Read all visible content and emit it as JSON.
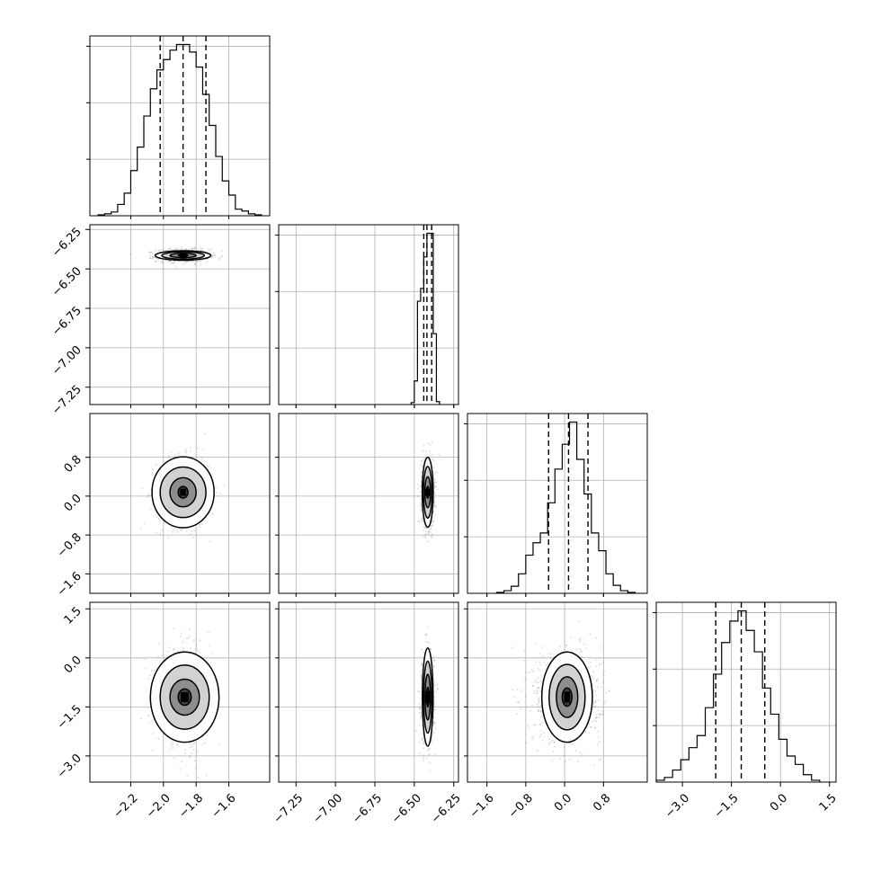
{
  "chart_data": {
    "type": "corner",
    "title": "",
    "grid": true,
    "colors": {
      "line": "#000000",
      "grid": "#b0b0b0",
      "sample": "#555555"
    },
    "parameters": [
      {
        "label": "",
        "range": [
          -2.45,
          -1.35
        ],
        "ticks": [
          -2.2,
          -2.0,
          -1.8,
          -1.6
        ],
        "tick_labels": [
          "−2.2",
          "−2.0",
          "−1.8",
          "−1.6"
        ],
        "quantiles": [
          -2.02,
          -1.88,
          -1.74
        ],
        "mean": -1.88,
        "sd": 0.08
      },
      {
        "label": "",
        "range": [
          -7.36,
          -6.22
        ],
        "ticks": [
          -7.25,
          -7.0,
          -6.75,
          -6.5,
          -6.25
        ],
        "tick_labels": [
          "−7.25",
          "−7.00",
          "−6.75",
          "−6.50",
          "−6.25"
        ],
        "quantiles": [
          -6.44,
          -6.42,
          -6.39
        ],
        "mean": -6.415,
        "sd": 0.02
      },
      {
        "label": "",
        "range": [
          -2.0,
          1.7
        ],
        "ticks": [
          -1.6,
          -0.8,
          0.0,
          0.8
        ],
        "tick_labels": [
          "−1.6",
          "−0.8",
          "0.0",
          "0.8"
        ],
        "quantiles": [
          -0.33,
          0.08,
          0.48
        ],
        "mean": 0.08,
        "sd": 0.35
      },
      {
        "label": "",
        "range": [
          -3.8,
          1.7
        ],
        "ticks": [
          -3.0,
          -1.5,
          0.0,
          1.5
        ],
        "tick_labels": [
          "−3.0",
          "−1.5",
          "0.0",
          "1.5"
        ],
        "quantiles": [
          -1.98,
          -1.2,
          -0.48
        ],
        "mean": -1.2,
        "sd": 0.7
      }
    ],
    "hist": [
      {
        "param": 0,
        "bins": [
          [
            -2.4,
            -2.36,
            1
          ],
          [
            -2.36,
            -2.32,
            2
          ],
          [
            -2.32,
            -2.28,
            4
          ],
          [
            -2.28,
            -2.24,
            12
          ],
          [
            -2.24,
            -2.2,
            24
          ],
          [
            -2.2,
            -2.16,
            48
          ],
          [
            -2.16,
            -2.12,
            73
          ],
          [
            -2.12,
            -2.08,
            106
          ],
          [
            -2.08,
            -2.04,
            135
          ],
          [
            -2.04,
            -2.0,
            155
          ],
          [
            -2.0,
            -1.96,
            166
          ],
          [
            -1.96,
            -1.92,
            176
          ],
          [
            -1.92,
            -1.88,
            182
          ],
          [
            -1.88,
            -1.84,
            182
          ],
          [
            -1.84,
            -1.8,
            174
          ],
          [
            -1.8,
            -1.76,
            158
          ],
          [
            -1.76,
            -1.72,
            129
          ],
          [
            -1.72,
            -1.68,
            96
          ],
          [
            -1.68,
            -1.64,
            63
          ],
          [
            -1.64,
            -1.6,
            37
          ],
          [
            -1.6,
            -1.56,
            22
          ],
          [
            -1.56,
            -1.52,
            7
          ],
          [
            -1.52,
            -1.48,
            5
          ],
          [
            -1.48,
            -1.44,
            2
          ],
          [
            -1.44,
            -1.4,
            1
          ]
        ]
      },
      {
        "param": 1,
        "bins": [
          [
            -6.52,
            -6.5,
            2
          ],
          [
            -6.5,
            -6.48,
            24
          ],
          [
            -6.48,
            -6.46,
            105
          ],
          [
            -6.46,
            -6.44,
            118
          ],
          [
            -6.44,
            -6.42,
            150
          ],
          [
            -6.42,
            -6.4,
            174
          ],
          [
            -6.4,
            -6.38,
            174
          ],
          [
            -6.38,
            -6.36,
            72
          ],
          [
            -6.36,
            -6.34,
            3
          ]
        ]
      },
      {
        "param": 2,
        "bins": [
          [
            -1.4,
            -1.25,
            1
          ],
          [
            -1.25,
            -1.1,
            3
          ],
          [
            -1.1,
            -0.95,
            8
          ],
          [
            -0.95,
            -0.8,
            22
          ],
          [
            -0.8,
            -0.65,
            43
          ],
          [
            -0.65,
            -0.5,
            57
          ],
          [
            -0.5,
            -0.35,
            68
          ],
          [
            -0.35,
            -0.2,
            102
          ],
          [
            -0.2,
            -0.05,
            140
          ],
          [
            -0.05,
            0.1,
            168
          ],
          [
            0.1,
            0.25,
            193
          ],
          [
            0.25,
            0.4,
            151
          ],
          [
            0.4,
            0.55,
            112
          ],
          [
            0.55,
            0.7,
            68
          ],
          [
            0.7,
            0.85,
            48
          ],
          [
            0.85,
            1.0,
            22
          ],
          [
            1.0,
            1.15,
            9
          ],
          [
            1.15,
            1.3,
            3
          ],
          [
            1.3,
            1.45,
            1
          ]
        ]
      },
      {
        "param": 3,
        "bins": [
          [
            -3.8,
            -3.55,
            2
          ],
          [
            -3.55,
            -3.3,
            5
          ],
          [
            -3.3,
            -3.05,
            13
          ],
          [
            -3.05,
            -2.8,
            24
          ],
          [
            -2.8,
            -2.55,
            37
          ],
          [
            -2.55,
            -2.3,
            50
          ],
          [
            -2.3,
            -2.05,
            80
          ],
          [
            -2.05,
            -1.8,
            116
          ],
          [
            -1.8,
            -1.55,
            150
          ],
          [
            -1.55,
            -1.3,
            173
          ],
          [
            -1.3,
            -1.05,
            184
          ],
          [
            -1.05,
            -0.8,
            163
          ],
          [
            -0.8,
            -0.55,
            140
          ],
          [
            -0.55,
            -0.3,
            101
          ],
          [
            -0.3,
            -0.05,
            73
          ],
          [
            -0.05,
            0.2,
            46
          ],
          [
            0.2,
            0.45,
            28
          ],
          [
            0.45,
            0.7,
            19
          ],
          [
            0.7,
            0.95,
            8
          ],
          [
            0.95,
            1.2,
            2
          ]
        ]
      }
    ],
    "pairs": [
      {
        "x": 0,
        "y": 1,
        "center": [
          -1.88,
          -6.415
        ],
        "contour_half_widths": [
          [
            0.03,
            0.006
          ],
          [
            0.08,
            0.014
          ],
          [
            0.13,
            0.023
          ],
          [
            0.17,
            0.03
          ]
        ]
      },
      {
        "x": 0,
        "y": 2,
        "center": [
          -1.88,
          0.08
        ],
        "contour_half_widths": [
          [
            0.03,
            0.12
          ],
          [
            0.08,
            0.3
          ],
          [
            0.14,
            0.52
          ],
          [
            0.19,
            0.73
          ]
        ]
      },
      {
        "x": 1,
        "y": 2,
        "center": [
          -6.415,
          0.08
        ],
        "contour_half_widths": [
          [
            0.007,
            0.12
          ],
          [
            0.018,
            0.32
          ],
          [
            0.027,
            0.53
          ],
          [
            0.035,
            0.72
          ]
        ]
      },
      {
        "x": 0,
        "y": 3,
        "center": [
          -1.87,
          -1.2
        ],
        "contour_half_widths": [
          [
            0.04,
            0.25
          ],
          [
            0.09,
            0.55
          ],
          [
            0.15,
            0.98
          ],
          [
            0.21,
            1.38
          ]
        ]
      },
      {
        "x": 1,
        "y": 3,
        "center": [
          -6.415,
          -1.2
        ],
        "contour_half_widths": [
          [
            0.007,
            0.3
          ],
          [
            0.017,
            0.7
          ],
          [
            0.026,
            1.1
          ],
          [
            0.034,
            1.5
          ]
        ]
      },
      {
        "x": 2,
        "y": 3,
        "center": [
          0.05,
          -1.2
        ],
        "contour_half_widths": [
          [
            0.1,
            0.28
          ],
          [
            0.22,
            0.62
          ],
          [
            0.37,
            1.0
          ],
          [
            0.52,
            1.38
          ]
        ]
      }
    ]
  }
}
